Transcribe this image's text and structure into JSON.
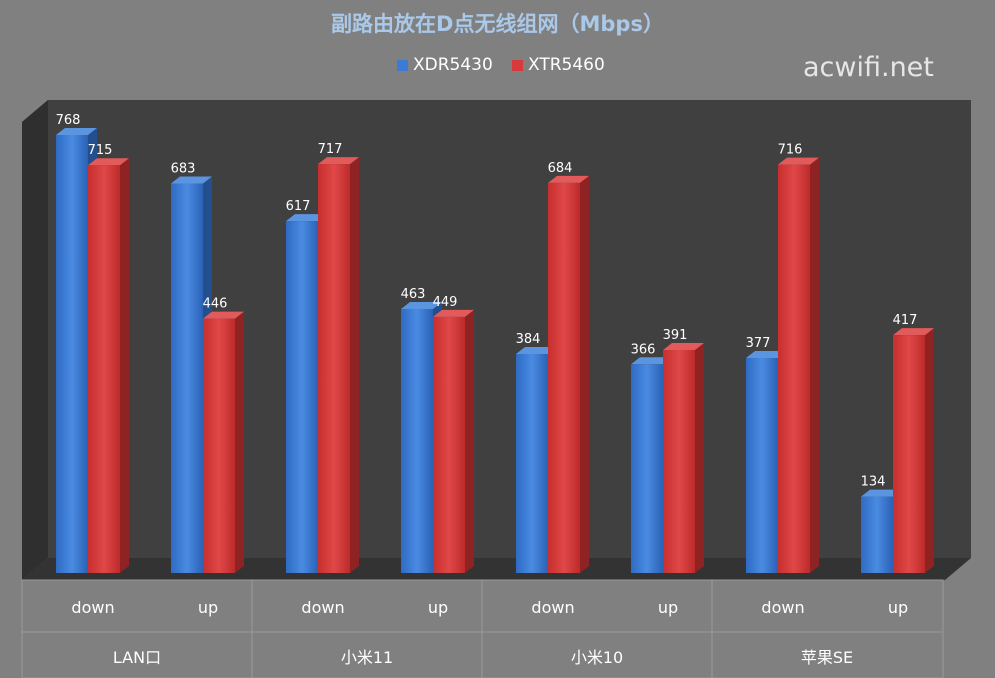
{
  "chart_data": {
    "type": "bar",
    "title": "副路由放在D点无线组网（Mbps）",
    "categories": [
      "down",
      "up",
      "down",
      "up",
      "down",
      "up",
      "down",
      "up"
    ],
    "groups": [
      "LAN口",
      "小米11",
      "小米10",
      "苹果SE"
    ],
    "series": [
      {
        "name": "XDR5430",
        "values": [
          768,
          683,
          617,
          463,
          384,
          366,
          377,
          134
        ],
        "color": "#3a7bd5"
      },
      {
        "name": "XTR5460",
        "values": [
          715,
          446,
          717,
          449,
          684,
          391,
          716,
          417
        ],
        "color": "#d63a3a"
      }
    ],
    "ylim": [
      0,
      800
    ],
    "legend": "top-center",
    "grid": false
  },
  "watermark": "acwifi.net"
}
